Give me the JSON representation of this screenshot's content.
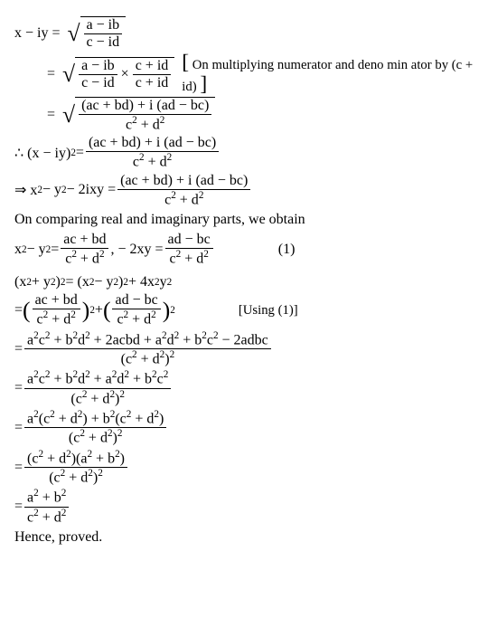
{
  "l1": {
    "lhs": "x − iy =",
    "num": "a − ib",
    "den": "c − id"
  },
  "l2": {
    "eq": "=",
    "num1": "a − ib",
    "den1": "c − id",
    "times": "×",
    "num2": "c + id",
    "den2": "c + id",
    "lbr": "[",
    "note1": "On multiplying numerator and deno min ator by ",
    "note2": "(c + id)",
    "rbr": "]"
  },
  "l3": {
    "eq": "=",
    "num": "(ac + bd) + i (ad − bc)",
    "den": "c",
    "e2a": "2",
    "plus": " + d",
    "e2b": "2"
  },
  "l4": {
    "lhs": "∴ (x − iy)",
    "e2": "2",
    "eq": " = ",
    "num": "(ac + bd) + i (ad − bc)",
    "den": "c",
    "e2a": "2",
    "plus": " + d",
    "e2b": "2"
  },
  "l5": {
    "lhs": "⇒ x",
    "e2a": "2",
    "minus": " − y",
    "e2b": "2",
    "rest": " − 2ixy = ",
    "num": "(ac + bd) + i (ad − bc)",
    "den": "c",
    "e2c": "2",
    "plus": " + d",
    "e2d": "2"
  },
  "l6": "On comparing real and imaginary parts, we obtain",
  "l7": {
    "a": "x",
    "e1": "2",
    "b": " − y",
    "e2": "2",
    "eq": " = ",
    "num1": "ac + bd",
    "d1a": "c",
    "e3": "2",
    "d1b": " + d",
    "e4": "2",
    "comma": ",  − 2xy = ",
    "num2": "ad − bc",
    "d2a": "c",
    "e5": "2",
    "d2b": " + d",
    "e6": "2",
    "ref": "(1)"
  },
  "l8": {
    "a": "(x",
    "e1": "2",
    "b": " + y",
    "e2": "2",
    "c": ")",
    "e3": "2",
    "eq": " = (x",
    "e4": "2",
    "d": " − y",
    "e5": "2",
    "e": ")",
    "e6": "2",
    "f": " + 4x",
    "e7": "2",
    "g": "y",
    "e8": "2"
  },
  "l9": {
    "eq": "= ",
    "n1": "ac + bd",
    "d1a": "c",
    "e1": "2",
    "d1b": " + d",
    "e2": "2",
    "sup1": "2",
    "plus": " + ",
    "n2": "ad − bc",
    "d2a": "c",
    "e3": "2",
    "d2b": " + d",
    "e4": "2",
    "sup2": "2",
    "note": "[Using (1)]"
  },
  "l10": {
    "eq": "= ",
    "num": "a",
    "t": [
      "2",
      "c",
      "2",
      " + b",
      "2",
      "d",
      "2",
      " + 2acbd + a",
      "2",
      "d",
      "2",
      " + b",
      "2",
      "c",
      "2",
      " − 2adbc"
    ],
    "den": "(c",
    "e1": "2",
    "d2": " + d",
    "e2": "2",
    "rp": ")",
    "e3": "2"
  },
  "l11": {
    "eq": "= ",
    "num": "a",
    "t": [
      "2",
      "c",
      "2",
      " + b",
      "2",
      "d",
      "2",
      " + a",
      "2",
      "d",
      "2",
      " + b",
      "2",
      "c",
      "2"
    ],
    "den": "(c",
    "e1": "2",
    "d2": " + d",
    "e2": "2",
    "rp": ")",
    "e3": "2"
  },
  "l12": {
    "eq": "= ",
    "nA": "a",
    "e1": "2",
    "nB": "(c",
    "e2": "2",
    "nC": " + d",
    "e3": "2",
    "nD": ") + b",
    "e4": "2",
    "nE": "(c",
    "e5": "2",
    "nF": " + d",
    "e6": "2",
    "nG": ")",
    "den": "(c",
    "e7": "2",
    "d2": " + d",
    "e8": "2",
    "rp": ")",
    "e9": "2"
  },
  "l13": {
    "eq": "= ",
    "nA": "(c",
    "e1": "2",
    "nB": " + d",
    "e2": "2",
    "nC": ")(a",
    "e3": "2",
    "nD": " + b",
    "e4": "2",
    "nE": ")",
    "den": "(c",
    "e5": "2",
    "d2": " + d",
    "e6": "2",
    "rp": ")",
    "e7": "2"
  },
  "l14": {
    "eq": "= ",
    "nA": "a",
    "e1": "2",
    "nB": " + b",
    "e2": "2",
    "dA": "c",
    "e3": "2",
    "dB": " + d",
    "e4": "2"
  },
  "l15": "Hence, proved."
}
